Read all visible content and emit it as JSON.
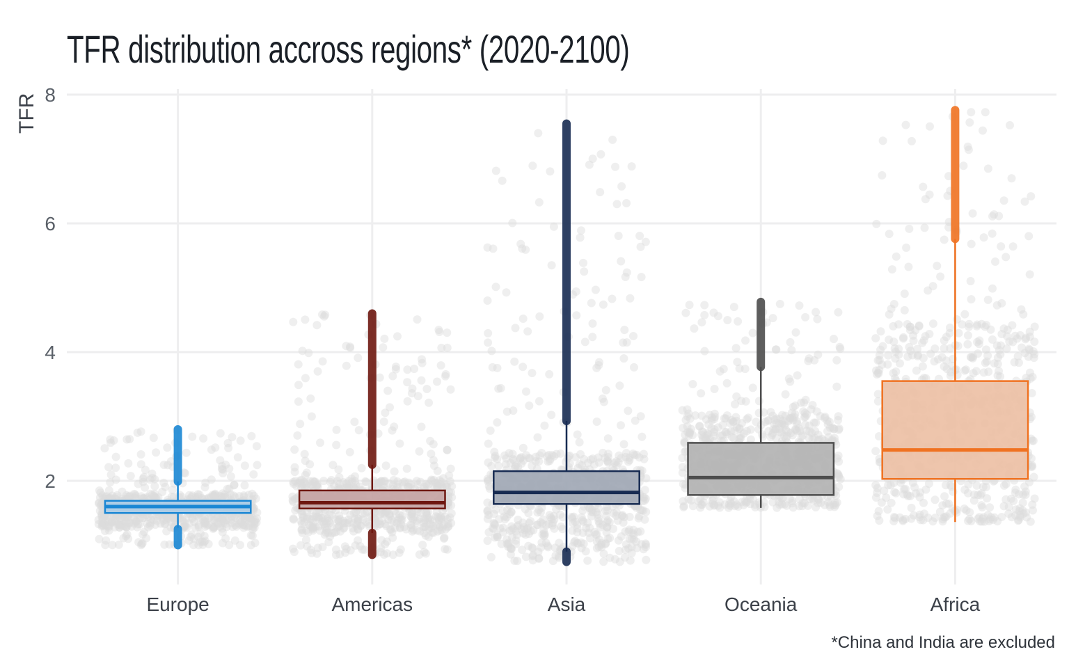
{
  "chart_data": {
    "type": "boxplot",
    "title": "TFR distribution accross regions* (2020-2100)",
    "xlabel": "",
    "ylabel": "TFR",
    "caption": "*China and India are excluded",
    "ylim": [
      0.5,
      8
    ],
    "yticks": [
      2,
      4,
      6,
      8
    ],
    "grid": true,
    "legend": "none",
    "jitter_point_color": "#dcdcdc",
    "categories": [
      "Europe",
      "Americas",
      "Asia",
      "Oceania",
      "Africa"
    ],
    "series": [
      {
        "name": "Europe",
        "color": "#1b87d4",
        "fill": "#a9cbe6",
        "q1": 1.5,
        "median": 1.6,
        "q3": 1.69,
        "whisker_low": 1.27,
        "whisker_high": 1.99,
        "outliers_low": [
          1.0,
          1.25
        ],
        "outliers_high": [
          1.99,
          2.8
        ],
        "jitter_range": [
          1.0,
          2.8
        ]
      },
      {
        "name": "Americas",
        "color": "#6e1710",
        "fill": "#c4a3a3",
        "q1": 1.57,
        "median": 1.66,
        "q3": 1.85,
        "whisker_low": 1.19,
        "whisker_high": 2.25,
        "outliers_low": [
          0.85,
          1.19
        ],
        "outliers_high": [
          2.25,
          4.6
        ],
        "jitter_range": [
          0.85,
          4.6
        ]
      },
      {
        "name": "Asia",
        "color": "#172b52",
        "fill": "#a1a8b5",
        "q1": 1.64,
        "median": 1.82,
        "q3": 2.15,
        "whisker_low": 0.9,
        "whisker_high": 2.93,
        "outliers_low": [
          0.74,
          0.9
        ],
        "outliers_high": [
          2.93,
          7.55
        ],
        "jitter_range": [
          0.74,
          7.55
        ]
      },
      {
        "name": "Oceania",
        "color": "#4d4d4d",
        "fill": "#b3b3b3",
        "q1": 1.78,
        "median": 2.05,
        "q3": 2.59,
        "whisker_low": 1.58,
        "whisker_high": 3.77,
        "outliers_low": [],
        "outliers_high": [
          3.77,
          4.78
        ],
        "jitter_range": [
          1.58,
          4.78
        ]
      },
      {
        "name": "Africa",
        "color": "#f07221",
        "fill": "#edc0a5",
        "q1": 2.03,
        "median": 2.48,
        "q3": 3.55,
        "whisker_low": 1.36,
        "whisker_high": 5.76,
        "outliers_low": [],
        "outliers_high": [
          5.76,
          7.76
        ],
        "jitter_range": [
          1.36,
          7.76
        ]
      }
    ]
  }
}
